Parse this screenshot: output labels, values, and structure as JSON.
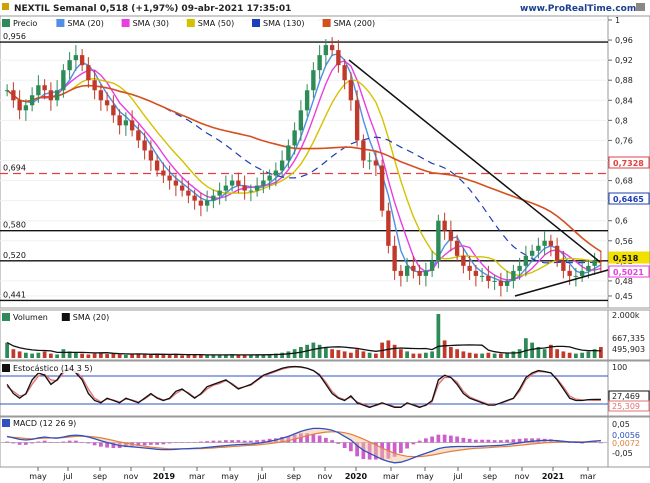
{
  "header": {
    "title": "NEXTIL Semanal 0,518 (+1,97%) 09-abr-2021 17:35:01",
    "watermark": "www.ProRealTime.com"
  },
  "colors": {
    "up": "#2e8b57",
    "down": "#c0392b",
    "sma20": "#4f8fe8",
    "sma30": "#e83ee0",
    "sma50": "#d4c200",
    "sma130": "#1d3fb5",
    "sma200": "#d4501e",
    "trend": "#111111",
    "hline_dashed": "#e04040",
    "volume": "#2e8b57",
    "vol_sma": "#111111",
    "stoch_k": "#111111",
    "stoch_d": "#e07070",
    "macd": "#3050c0",
    "macd_signal": "#e08040",
    "macd_hist": "#cc5fcc"
  },
  "panels": {
    "price": {
      "legend": [
        {
          "label": "Precio",
          "color": "#2e8b57"
        },
        {
          "label": "SMA (20)",
          "color": "#4f8fe8"
        },
        {
          "label": "SMA (30)",
          "color": "#e83ee0"
        },
        {
          "label": "SMA (50)",
          "color": "#d4c200"
        },
        {
          "label": "SMA (130)",
          "color": "#1d3fb5"
        },
        {
          "label": "SMA (200)",
          "color": "#d4501e"
        }
      ],
      "left_levels": [
        "0,956",
        "0,694",
        "0,580",
        "0,520",
        "0,441"
      ],
      "right_ticks": [
        "1",
        "0,96",
        "0,92",
        "0,88",
        "0,84",
        "0,8",
        "0,76",
        "0,72",
        "0,68",
        "0,64",
        "0,6",
        "0,56",
        "0,52",
        "0,48",
        "0,45"
      ],
      "right_badges": [
        {
          "label": "0,7328",
          "color": "#e04040"
        },
        {
          "label": "0,6465",
          "color": "#1d3fb5"
        },
        {
          "label": "0,518",
          "color": "#f2e000"
        },
        {
          "label": "0,5021",
          "color": "#e83ee0"
        }
      ]
    },
    "volume": {
      "legend": [
        {
          "label": "Volumen",
          "color": "#2e8b57"
        },
        {
          "label": "SMA (20)",
          "color": "#111111"
        }
      ],
      "right_labels": [
        "2.000k",
        "667,335",
        "495,903"
      ]
    },
    "stochastic": {
      "legend": [
        {
          "label": "Estocástico (14 3 5)",
          "color": "#111111"
        }
      ],
      "right_labels": [
        "100",
        "27,469",
        "25,309"
      ]
    },
    "macd": {
      "legend": [
        {
          "label": "MACD (12 26 9)",
          "color": "#3050c0"
        }
      ],
      "right_labels": [
        "0,05",
        "0,0056",
        "0,0072",
        "-0,05"
      ]
    }
  },
  "x_axis": {
    "labels": [
      "may",
      "jul",
      "sep",
      "nov",
      "2019",
      "mar",
      "may",
      "jul",
      "sep",
      "nov",
      "2020",
      "mar",
      "may",
      "jul",
      "sep",
      "nov",
      "2021",
      "mar"
    ]
  },
  "chart_data": {
    "type": "candlestick",
    "title": "NEXTIL Semanal 0,518 (+1,97%) 09-abr-2021 17:35:01",
    "frequency": "weekly",
    "price_range": [
      0.43,
      1.0
    ],
    "horizontal_levels": [
      0.956,
      0.694,
      0.58,
      0.52,
      0.441
    ],
    "dashed_level": 0.694,
    "last_close": 0.518,
    "change_pct": 1.97,
    "sma_values_last": {
      "SMA (20)": 0.518,
      "SMA (30)": 0.5021,
      "SMA (130)": 0.6465,
      "SMA (200)": 0.7328
    },
    "close_series": [
      0.86,
      0.84,
      0.82,
      0.83,
      0.85,
      0.87,
      0.86,
      0.84,
      0.86,
      0.9,
      0.92,
      0.93,
      0.91,
      0.88,
      0.86,
      0.84,
      0.83,
      0.81,
      0.79,
      0.8,
      0.78,
      0.76,
      0.74,
      0.72,
      0.7,
      0.69,
      0.68,
      0.67,
      0.66,
      0.65,
      0.64,
      0.63,
      0.64,
      0.65,
      0.66,
      0.67,
      0.68,
      0.67,
      0.66,
      0.66,
      0.67,
      0.68,
      0.69,
      0.7,
      0.72,
      0.75,
      0.78,
      0.82,
      0.86,
      0.9,
      0.93,
      0.95,
      0.94,
      0.91,
      0.88,
      0.84,
      0.76,
      0.72,
      0.72,
      0.71,
      0.62,
      0.55,
      0.5,
      0.49,
      0.51,
      0.5,
      0.49,
      0.5,
      0.52,
      0.6,
      0.58,
      0.56,
      0.53,
      0.51,
      0.5,
      0.49,
      0.49,
      0.48,
      0.48,
      0.47,
      0.48,
      0.5,
      0.51,
      0.53,
      0.54,
      0.55,
      0.56,
      0.55,
      0.52,
      0.5,
      0.49,
      0.49,
      0.5,
      0.51,
      0.52,
      0.518
    ],
    "volume_series": [
      0.35,
      0.2,
      0.15,
      0.12,
      0.1,
      0.12,
      0.15,
      0.1,
      0.08,
      0.2,
      0.15,
      0.12,
      0.1,
      0.08,
      0.1,
      0.12,
      0.09,
      0.1,
      0.08,
      0.07,
      0.09,
      0.1,
      0.08,
      0.07,
      0.1,
      0.08,
      0.07,
      0.08,
      0.06,
      0.07,
      0.08,
      0.07,
      0.06,
      0.07,
      0.08,
      0.07,
      0.08,
      0.06,
      0.07,
      0.08,
      0.07,
      0.08,
      0.09,
      0.1,
      0.12,
      0.15,
      0.2,
      0.25,
      0.3,
      0.35,
      0.3,
      0.25,
      0.2,
      0.18,
      0.15,
      0.12,
      0.2,
      0.15,
      0.12,
      0.1,
      0.35,
      0.4,
      0.3,
      0.2,
      0.15,
      0.1,
      0.1,
      0.12,
      0.15,
      1.0,
      0.4,
      0.25,
      0.2,
      0.15,
      0.12,
      0.1,
      0.1,
      0.12,
      0.1,
      0.1,
      0.12,
      0.15,
      0.2,
      0.45,
      0.35,
      0.25,
      0.2,
      0.3,
      0.2,
      0.15,
      0.12,
      0.1,
      0.12,
      0.15,
      0.2,
      0.25
    ],
    "stochastic_k": [
      60,
      40,
      30,
      40,
      70,
      85,
      80,
      60,
      70,
      90,
      95,
      85,
      70,
      40,
      25,
      20,
      30,
      25,
      20,
      30,
      25,
      20,
      30,
      40,
      30,
      25,
      30,
      45,
      50,
      40,
      30,
      40,
      55,
      60,
      65,
      70,
      60,
      50,
      55,
      60,
      70,
      80,
      85,
      90,
      95,
      98,
      99,
      98,
      95,
      90,
      80,
      60,
      40,
      30,
      25,
      35,
      20,
      15,
      10,
      15,
      20,
      15,
      10,
      10,
      20,
      15,
      10,
      15,
      25,
      70,
      80,
      75,
      60,
      40,
      30,
      25,
      20,
      15,
      15,
      20,
      25,
      30,
      50,
      75,
      85,
      90,
      88,
      85,
      70,
      50,
      30,
      25,
      25,
      27,
      27.469,
      27.469
    ],
    "stochastic_d": [
      55,
      45,
      35,
      38,
      60,
      78,
      82,
      70,
      68,
      85,
      92,
      88,
      75,
      50,
      30,
      22,
      28,
      26,
      22,
      28,
      26,
      22,
      28,
      38,
      32,
      26,
      28,
      40,
      48,
      42,
      32,
      38,
      50,
      58,
      62,
      68,
      62,
      52,
      55,
      58,
      68,
      78,
      83,
      88,
      93,
      96,
      98,
      97,
      95,
      90,
      82,
      65,
      45,
      32,
      27,
      32,
      22,
      17,
      12,
      14,
      18,
      16,
      12,
      11,
      18,
      16,
      12,
      14,
      22,
      60,
      75,
      75,
      65,
      45,
      33,
      27,
      22,
      17,
      16,
      19,
      24,
      29,
      45,
      70,
      82,
      88,
      87,
      85,
      72,
      55,
      35,
      28,
      26,
      26,
      25.309,
      25.309
    ],
    "macd_line": [
      0.02,
      0.015,
      0.01,
      0.008,
      0.01,
      0.015,
      0.018,
      0.015,
      0.014,
      0.018,
      0.022,
      0.024,
      0.022,
      0.018,
      0.012,
      0.006,
      0.0,
      -0.005,
      -0.01,
      -0.012,
      -0.014,
      -0.016,
      -0.018,
      -0.02,
      -0.022,
      -0.023,
      -0.023,
      -0.022,
      -0.021,
      -0.02,
      -0.019,
      -0.018,
      -0.016,
      -0.014,
      -0.012,
      -0.01,
      -0.008,
      -0.007,
      -0.006,
      -0.005,
      -0.003,
      0.0,
      0.004,
      0.008,
      0.014,
      0.02,
      0.028,
      0.036,
      0.042,
      0.046,
      0.046,
      0.044,
      0.04,
      0.032,
      0.02,
      0.008,
      -0.01,
      -0.025,
      -0.035,
      -0.045,
      -0.055,
      -0.062,
      -0.066,
      -0.064,
      -0.058,
      -0.05,
      -0.042,
      -0.035,
      -0.028,
      -0.02,
      -0.016,
      -0.014,
      -0.013,
      -0.013,
      -0.013,
      -0.013,
      -0.012,
      -0.011,
      -0.01,
      -0.009,
      -0.007,
      -0.004,
      -0.001,
      0.002,
      0.004,
      0.006,
      0.007,
      0.007,
      0.006,
      0.004,
      0.002,
      0.001,
      0.0,
      0.003,
      0.005,
      0.0056
    ],
    "macd_signal": [
      0.018,
      0.017,
      0.015,
      0.013,
      0.012,
      0.013,
      0.014,
      0.015,
      0.015,
      0.016,
      0.018,
      0.02,
      0.021,
      0.02,
      0.018,
      0.015,
      0.011,
      0.007,
      0.002,
      -0.002,
      -0.006,
      -0.009,
      -0.012,
      -0.015,
      -0.017,
      -0.019,
      -0.021,
      -0.021,
      -0.021,
      -0.021,
      -0.02,
      -0.02,
      -0.019,
      -0.018,
      -0.016,
      -0.015,
      -0.013,
      -0.012,
      -0.01,
      -0.009,
      -0.008,
      -0.006,
      -0.004,
      -0.001,
      0.002,
      0.006,
      0.011,
      0.016,
      0.022,
      0.027,
      0.031,
      0.034,
      0.035,
      0.035,
      0.032,
      0.027,
      0.02,
      0.011,
      0.002,
      -0.008,
      -0.018,
      -0.027,
      -0.035,
      -0.041,
      -0.045,
      -0.046,
      -0.046,
      -0.044,
      -0.041,
      -0.037,
      -0.033,
      -0.029,
      -0.026,
      -0.023,
      -0.021,
      -0.019,
      -0.018,
      -0.017,
      -0.015,
      -0.014,
      -0.013,
      -0.011,
      -0.009,
      -0.007,
      -0.005,
      -0.003,
      -0.001,
      0.0,
      0.001,
      0.002,
      0.002,
      0.002,
      0.002,
      0.002,
      0.003,
      0.0072
    ]
  }
}
